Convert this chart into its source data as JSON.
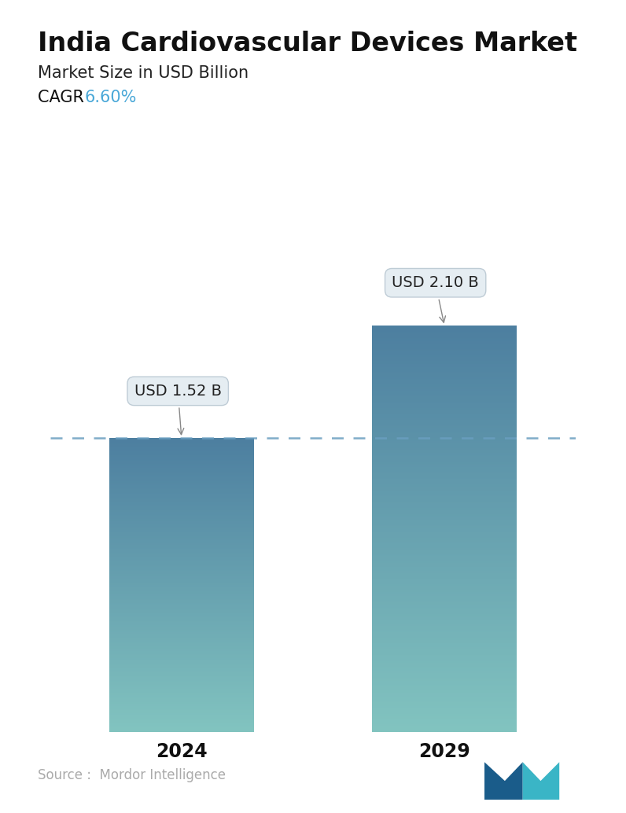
{
  "title": "India Cardiovascular Devices Market",
  "subtitle": "Market Size in USD Billion",
  "cagr_label": "CAGR ",
  "cagr_value": "6.60%",
  "cagr_color": "#4aa8d8",
  "categories": [
    "2024",
    "2029"
  ],
  "values": [
    1.52,
    2.1
  ],
  "value_labels": [
    "USD 1.52 B",
    "USD 2.10 B"
  ],
  "bar_color_top": "#4d7fa0",
  "bar_color_bottom": "#82c4c0",
  "dashed_line_color": "#6a9ec0",
  "dashed_line_y": 1.52,
  "source_text": "Source :  Mordor Intelligence",
  "source_color": "#aaaaaa",
  "background_color": "#ffffff",
  "title_fontsize": 24,
  "subtitle_fontsize": 15,
  "cagr_fontsize": 15,
  "label_fontsize": 14,
  "tick_fontsize": 17,
  "source_fontsize": 12,
  "ylim": [
    0,
    2.65
  ],
  "bar_width": 0.55
}
